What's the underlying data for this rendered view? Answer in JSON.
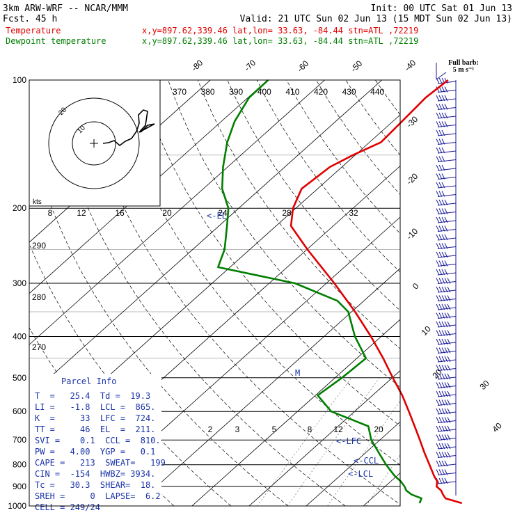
{
  "header": {
    "model": "3km ARW-WRF -- NCAR/MMM",
    "forecast": "Fcst.   45 h",
    "init": "Init: 00 UTC Sat 01 Jun 13",
    "valid": "Valid: 21 UTC Sun 02 Jun 13 (15 MDT Sun 02 Jun 13)"
  },
  "legend": [
    {
      "name": "Temperature",
      "info": "x,y=897.62,339.46   lat,lon= 33.63, -84.44   stn=ATL ,72219",
      "color": "#e00000"
    },
    {
      "name": "Dewpoint temperature",
      "info": "x,y=897.62,339.46   lat,lon= 33.63, -84.44   stn=ATL ,72219",
      "color": "#007f00"
    }
  ],
  "wind_legend": {
    "title": "Full barb:",
    "value": "5 m s⁻¹"
  },
  "hodograph": {
    "units": "kts",
    "ring_labels": [
      "10",
      "20"
    ]
  },
  "parcel_info": {
    "title": "Parcel Info",
    "rows": [
      "T  =   25.4  Td =  19.3",
      "LI =   -1.8  LCL =  865.",
      "K  =     33  LFC =  724.",
      "TT =     46  EL  =  211.",
      "SVI =    0.1  CCL =  810.",
      "PW =   4.00  YGP =   0.1",
      "CAPE =   213  SWEAT=   199",
      "CIN =  -154  HWBZ= 3934.",
      "Tc =   30.3  SHEAR=  18.",
      "SREH =     0  LAPSE=  6.2",
      "CELL = 249/24"
    ]
  },
  "levels": {
    "labels": [
      "LCL",
      "LFC",
      "EL",
      "CCL",
      "M"
    ]
  },
  "chart_data": {
    "type": "line",
    "title": "",
    "xlabel": "",
    "ylabel": "",
    "y_axis_pressure_ticks": [
      100,
      200,
      300,
      400,
      500,
      600,
      700,
      800,
      900,
      1000
    ],
    "pressure_range_hPa": [
      100,
      1000
    ],
    "y_scale": "log",
    "isotherm_labels_C": [
      -80,
      -70,
      -60,
      -50,
      -40,
      -30,
      -20,
      -10,
      0,
      10,
      20,
      30,
      40
    ],
    "theta_e_labels": [
      370,
      380,
      390,
      400,
      410,
      420,
      430,
      440
    ],
    "theta_labels": [
      290,
      280,
      270
    ],
    "mixing_ratio_labels_upper": [
      8,
      12,
      16,
      20,
      24,
      28,
      32
    ],
    "mixing_ratio_labels_lower": [
      2,
      3,
      5,
      8,
      12,
      20
    ],
    "series": [
      {
        "name": "Temperature",
        "color": "#e00000",
        "pressure_hPa": [
          985,
          960,
          940,
          920,
          900,
          875,
          850,
          800,
          750,
          700,
          650,
          600,
          550,
          500,
          450,
          400,
          350,
          300,
          250,
          220,
          200,
          180,
          160,
          150,
          140,
          125,
          110,
          100
        ],
        "temp_C": [
          26.7,
          22.9,
          21.7,
          20.6,
          19.0,
          18.1,
          16.5,
          13.5,
          10.3,
          7.0,
          3.4,
          -0.5,
          -4.8,
          -9.9,
          -15.4,
          -21.8,
          -29.4,
          -38.6,
          -49.9,
          -57.4,
          -60.5,
          -62.8,
          -62.1,
          -60.4,
          -58.0,
          -58.4,
          -58.9,
          -58.4
        ]
      },
      {
        "name": "Dewpoint temperature",
        "color": "#007f00",
        "pressure_hPa": [
          985,
          960,
          940,
          920,
          900,
          875,
          850,
          800,
          750,
          700,
          650,
          600,
          550,
          500,
          450,
          400,
          350,
          330,
          300,
          275,
          250,
          220,
          200,
          180,
          160,
          140,
          125,
          110,
          100
        ],
        "dewpoint_C": [
          19.3,
          18.7,
          16.2,
          14.5,
          13.4,
          11.7,
          9.6,
          5.9,
          2.3,
          -1.5,
          -4.7,
          -14.1,
          -19.6,
          -18.8,
          -18.4,
          -24.6,
          -30.6,
          -34.6,
          -45.5,
          -62.1,
          -64.4,
          -68.6,
          -71.8,
          -76.7,
          -80.8,
          -84.9,
          -87.7,
          -89.8,
          -89.9
        ]
      }
    ]
  }
}
